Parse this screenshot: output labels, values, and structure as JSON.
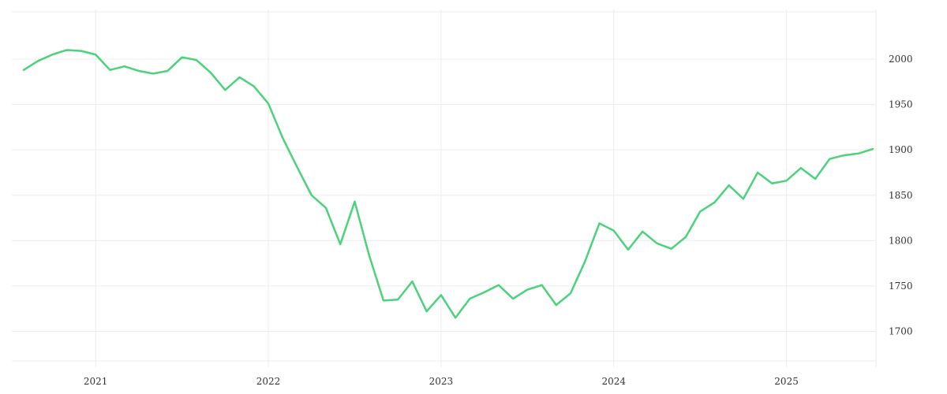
{
  "chart_data": {
    "type": "line",
    "title": "",
    "xlabel": "",
    "ylabel": "",
    "grid": true,
    "legend": "none",
    "y_axis_side": "right",
    "xlim": [
      "2020-08",
      "2025-07"
    ],
    "ylim": [
      1655,
      2050
    ],
    "x_ticks": [
      "2021",
      "2022",
      "2023",
      "2024",
      "2025"
    ],
    "y_ticks": [
      1700,
      1750,
      1800,
      1850,
      1900,
      1950,
      2000
    ],
    "colors": {
      "series": "#4cd27a",
      "grid": "#ececec",
      "text": "#333333"
    },
    "series": [
      {
        "x": [
          "2020-08",
          "2020-09",
          "2020-10",
          "2020-11",
          "2020-12",
          "2021-01",
          "2021-02",
          "2021-03",
          "2021-04",
          "2021-05",
          "2021-06",
          "2021-07",
          "2021-08",
          "2021-09",
          "2021-10",
          "2021-11",
          "2021-12",
          "2022-01",
          "2022-02",
          "2022-03",
          "2022-04",
          "2022-05",
          "2022-06",
          "2022-07",
          "2022-08",
          "2022-09",
          "2022-10",
          "2022-11",
          "2022-12",
          "2023-01",
          "2023-02",
          "2023-03",
          "2023-04",
          "2023-05",
          "2023-06",
          "2023-07",
          "2023-08",
          "2023-09",
          "2023-10",
          "2023-11",
          "2023-12",
          "2024-01",
          "2024-02",
          "2024-03",
          "2024-04",
          "2024-05",
          "2024-06",
          "2024-07",
          "2024-08",
          "2024-09",
          "2024-10",
          "2024-11",
          "2024-12",
          "2025-01",
          "2025-02",
          "2025-03",
          "2025-04",
          "2025-05",
          "2025-06",
          "2025-07"
        ],
        "values": [
          1988,
          1998,
          2005,
          2010,
          2009,
          2005,
          1988,
          1992,
          1987,
          1984,
          1987,
          2002,
          1999,
          1985,
          1966,
          1980,
          1970,
          1951,
          1913,
          1881,
          1850,
          1836,
          1796,
          1843,
          1784,
          1734,
          1735,
          1755,
          1722,
          1740,
          1715,
          1736,
          1743,
          1751,
          1736,
          1746,
          1751,
          1729,
          1742,
          1777,
          1819,
          1811,
          1790,
          1810,
          1797,
          1791,
          1804,
          1832,
          1842,
          1861,
          1846,
          1875,
          1863,
          1866,
          1880,
          1868,
          1890,
          1894,
          1896,
          1901
        ]
      }
    ]
  }
}
